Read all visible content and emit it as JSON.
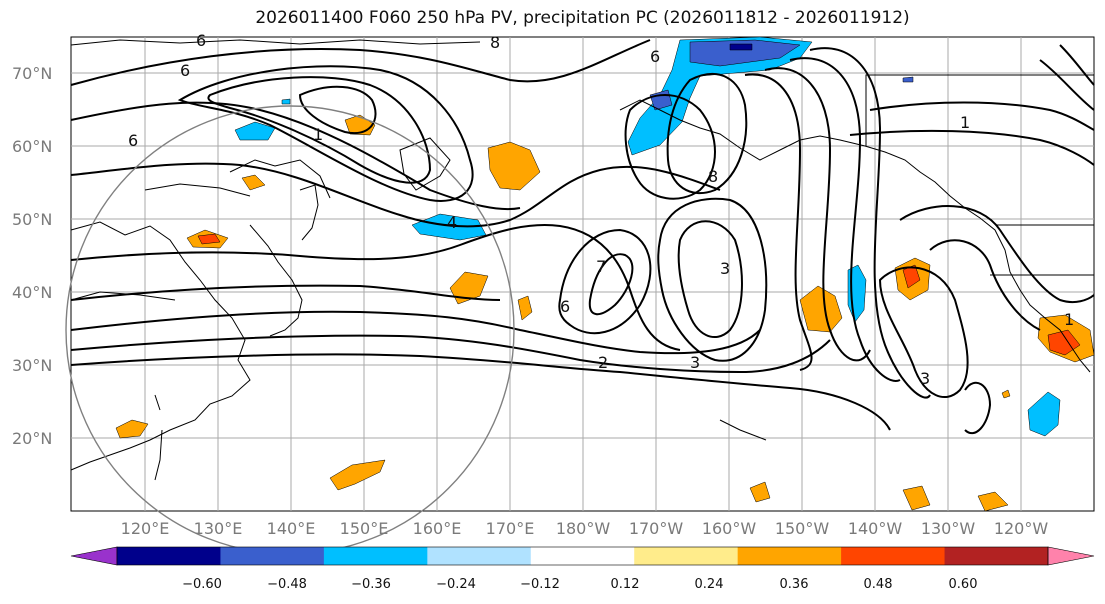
{
  "title": "2026011400 F060 250 hPa PV, precipitation PC (2026011812 - 2026011912)",
  "lat_labels": [
    "70°N",
    "60°N",
    "50°N",
    "40°N",
    "30°N",
    "20°N"
  ],
  "lon_labels": [
    "120°E",
    "130°E",
    "140°E",
    "150°E",
    "160°E",
    "170°E",
    "180°W",
    "170°W",
    "160°W",
    "150°W",
    "140°W",
    "130°W",
    "120°W"
  ],
  "pv_contour_labels": [
    "6",
    "8",
    "1",
    "6",
    "4",
    "1",
    "6",
    "8",
    "6",
    "7",
    "3",
    "6",
    "2",
    "3",
    "3",
    "1"
  ],
  "colorbar": {
    "tick_labels": [
      "−0.60",
      "−0.48",
      "−0.36",
      "−0.24",
      "−0.12",
      "0.12",
      "0.24",
      "0.36",
      "0.48",
      "0.60"
    ],
    "colors": [
      "#9932cc",
      "#00008b",
      "#3a5fcd",
      "#00bfff",
      "#b0e2ff",
      "#ffffff",
      "#ffec8b",
      "#ffa500",
      "#ff4500",
      "#b22222",
      "#ff82ab"
    ]
  }
}
